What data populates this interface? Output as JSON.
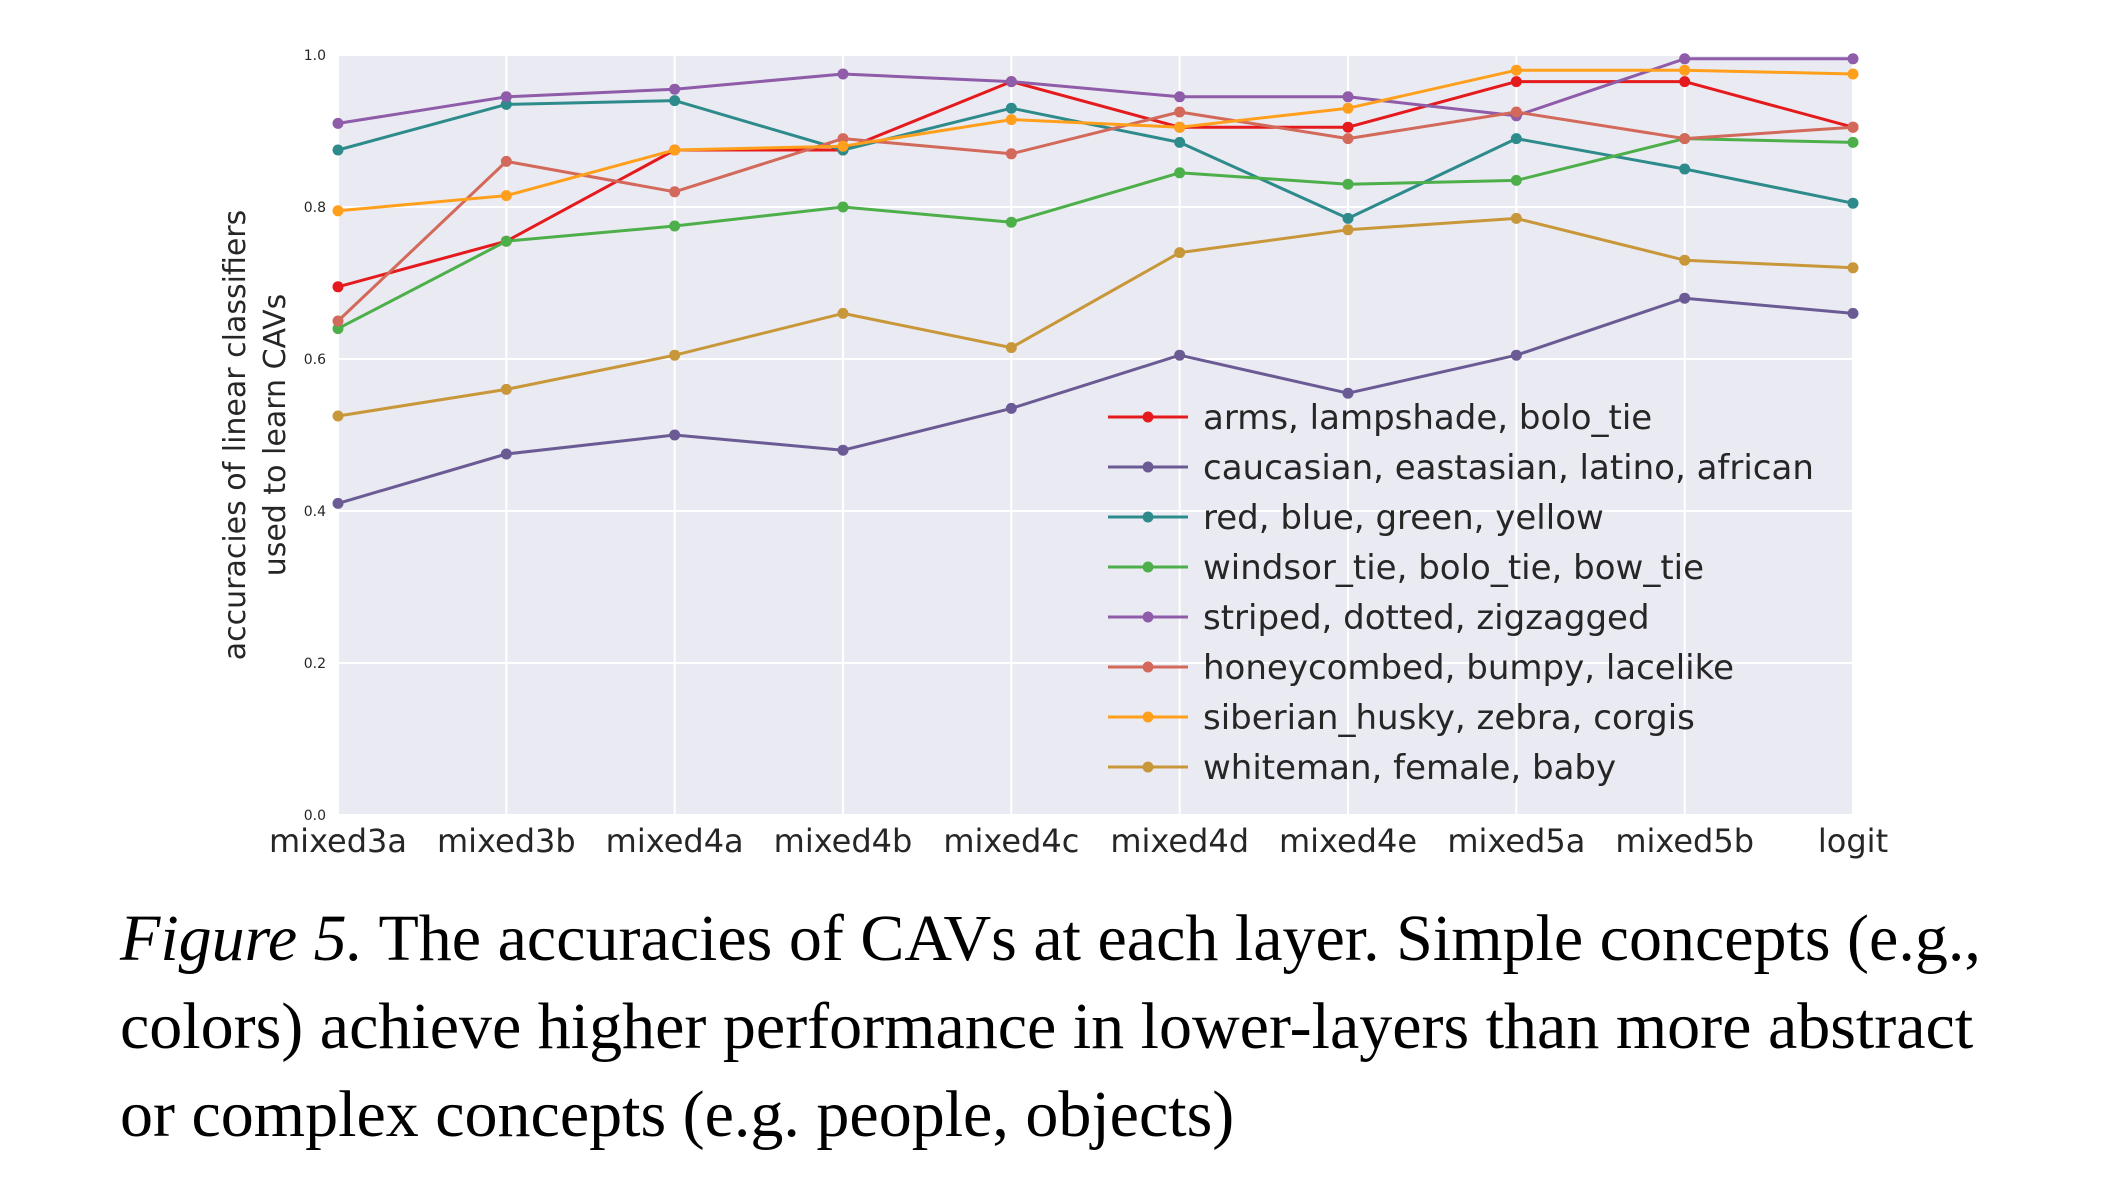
{
  "chart_data": {
    "type": "line",
    "x": [
      "mixed3a",
      "mixed3b",
      "mixed4a",
      "mixed4b",
      "mixed4c",
      "mixed4d",
      "mixed4e",
      "mixed5a",
      "mixed5b",
      "logit"
    ],
    "ylabel_lines": [
      "accuracies of linear classifiers",
      "used to learn CAVs"
    ],
    "ylim": [
      0.0,
      1.0
    ],
    "yticks": [
      "0.0",
      "0.2",
      "0.4",
      "0.6",
      "0.8",
      "1.0"
    ],
    "grid": true,
    "legend_position": "lower-right",
    "series": [
      {
        "name": "arms, lampshade, bolo_tie",
        "color": "#e41a1c",
        "values": [
          0.695,
          0.755,
          0.875,
          0.875,
          0.965,
          0.905,
          0.905,
          0.965,
          0.965,
          0.905
        ]
      },
      {
        "name": "caucasian, eastasian, latino, african",
        "color": "#6b5b95",
        "values": [
          0.41,
          0.475,
          0.5,
          0.48,
          0.535,
          0.605,
          0.555,
          0.605,
          0.68,
          0.66
        ]
      },
      {
        "name": "red, blue, green, yellow",
        "color": "#2e8b8b",
        "values": [
          0.875,
          0.935,
          0.94,
          0.875,
          0.93,
          0.885,
          0.785,
          0.89,
          0.85,
          0.805
        ]
      },
      {
        "name": "windsor_tie, bolo_tie, bow_tie",
        "color": "#4daf4a",
        "values": [
          0.64,
          0.755,
          0.775,
          0.8,
          0.78,
          0.845,
          0.83,
          0.835,
          0.89,
          0.885
        ]
      },
      {
        "name": "striped, dotted, zigzagged",
        "color": "#8e5ca8",
        "values": [
          0.91,
          0.945,
          0.955,
          0.975,
          0.965,
          0.945,
          0.945,
          0.92,
          0.995,
          0.995
        ]
      },
      {
        "name": "honeycombed, bumpy, lacelike",
        "color": "#d2695a",
        "values": [
          0.65,
          0.86,
          0.82,
          0.89,
          0.87,
          0.925,
          0.89,
          0.925,
          0.89,
          0.905
        ]
      },
      {
        "name": "siberian_husky, zebra, corgis",
        "color": "#ff9f1c",
        "values": [
          0.795,
          0.815,
          0.875,
          0.88,
          0.915,
          0.905,
          0.93,
          0.98,
          0.98,
          0.975
        ]
      },
      {
        "name": "whiteman, female, baby",
        "color": "#c8973a",
        "values": [
          0.525,
          0.56,
          0.605,
          0.66,
          0.615,
          0.74,
          0.77,
          0.785,
          0.73,
          0.72
        ]
      }
    ]
  },
  "caption": {
    "label": "Figure 5.",
    "text": " The accuracies of CAVs at each layer. Simple concepts (e.g., colors) achieve higher performance in lower-layers than more abstract or complex concepts (e.g. people, objects)"
  }
}
